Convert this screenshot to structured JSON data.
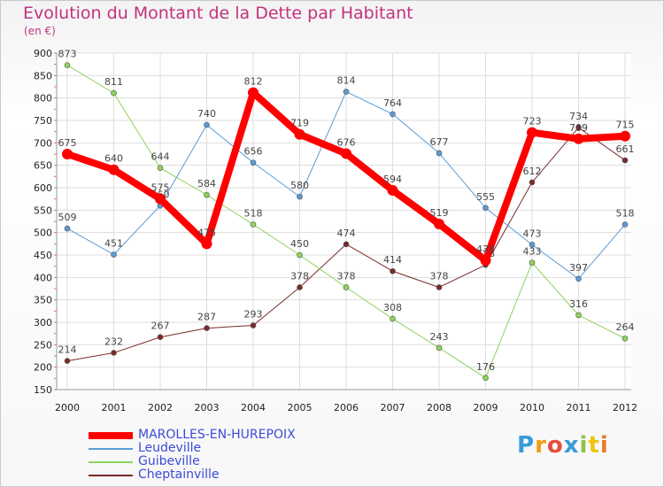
{
  "title": "Evolution du Montant de la Dette par Habitant",
  "subtitle": "(en €)",
  "logo": {
    "letters": [
      "P",
      "r",
      "o",
      "x",
      "i",
      "t",
      "i"
    ],
    "colors": [
      "#3a9ad9",
      "#f39c12",
      "#e74c3c",
      "#3a9ad9",
      "#8bc34a",
      "#f1c40f",
      "#e67e22"
    ]
  },
  "chart_data": {
    "type": "line",
    "x": [
      "2000",
      "2001",
      "2002",
      "2003",
      "2004",
      "2005",
      "2006",
      "2007",
      "2008",
      "2009",
      "2010",
      "2011",
      "2012"
    ],
    "ylim": [
      150,
      900
    ],
    "yticks": [
      150,
      200,
      250,
      300,
      350,
      400,
      450,
      500,
      550,
      600,
      650,
      700,
      750,
      800,
      850,
      900
    ],
    "grid": true,
    "legend_position": "bottom-left",
    "series": [
      {
        "name": "Cheptainville",
        "color": "#7a2a2a",
        "width": 1,
        "values": [
          214,
          232,
          267,
          287,
          293,
          378,
          474,
          414,
          378,
          428,
          612,
          734,
          661
        ]
      },
      {
        "name": "Guibeville",
        "color": "#8fd35a",
        "width": 1,
        "values": [
          873,
          811,
          644,
          584,
          518,
          450,
          378,
          308,
          243,
          176,
          433,
          316,
          264
        ]
      },
      {
        "name": "Leudeville",
        "color": "#5b9bd5",
        "width": 1,
        "values": [
          509,
          451,
          560,
          740,
          656,
          580,
          814,
          764,
          677,
          555,
          473,
          397,
          518
        ]
      },
      {
        "name": "MAROLLES-EN-HUREPOIX",
        "color": "#ff0000",
        "width": 8,
        "values": [
          675,
          640,
          575,
          475,
          812,
          719,
          676,
          594,
          519,
          438,
          723,
          709,
          715
        ]
      }
    ],
    "legend_order": [
      "MAROLLES-EN-HUREPOIX",
      "Leudeville",
      "Guibeville",
      "Cheptainville"
    ]
  }
}
